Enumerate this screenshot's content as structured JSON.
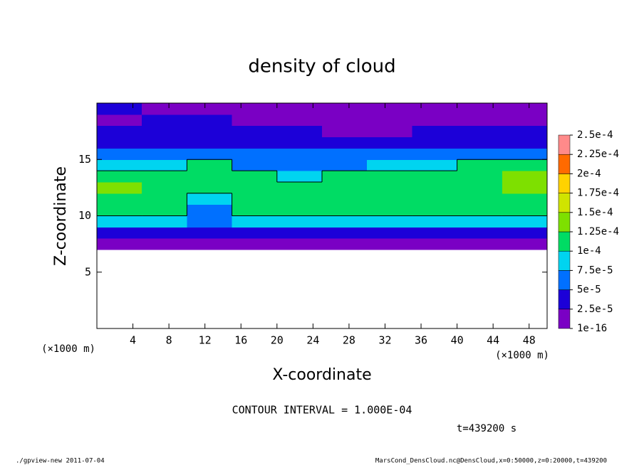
{
  "chart_data": {
    "type": "heatmap",
    "title": "density of cloud",
    "x_label": "X-coordinate",
    "y_label": "Z-coordinate",
    "x_unit": "(×1000 m)",
    "contour_note": "CONTOUR INTERVAL = 1.000E-04",
    "time_label": "t=439200 s",
    "footer_left": "./gpview-new  2011-07-04",
    "footer_right": "MarsCond_DensCloud.nc@DensCloud,x=0:50000,z=0:20000,t=439200",
    "xlim": [
      0,
      50
    ],
    "xticks": [
      4,
      8,
      12,
      16,
      20,
      24,
      28,
      32,
      36,
      40,
      44,
      48
    ],
    "ylim": [
      0,
      20
    ],
    "yticks": [
      5,
      10,
      15
    ],
    "x": [
      2.5,
      7.5,
      12.5,
      17.5,
      22.5,
      27.5,
      32.5,
      37.5,
      42.5,
      47.5
    ],
    "y": [
      0.5,
      1.5,
      2.5,
      3.5,
      4.5,
      5.5,
      6.5,
      7.5,
      8.5,
      9.5,
      10.5,
      11.5,
      12.5,
      13.5,
      14.5,
      15.5,
      16.5,
      17.5,
      18.5,
      19.5
    ],
    "values": [
      [
        null,
        null,
        null,
        null,
        null,
        null,
        null,
        null,
        null,
        null
      ],
      [
        null,
        null,
        null,
        null,
        null,
        null,
        null,
        null,
        null,
        null
      ],
      [
        null,
        null,
        null,
        null,
        null,
        null,
        null,
        null,
        null,
        null
      ],
      [
        null,
        null,
        null,
        null,
        null,
        null,
        null,
        null,
        null,
        null
      ],
      [
        null,
        null,
        null,
        null,
        null,
        null,
        null,
        null,
        null,
        null
      ],
      [
        null,
        null,
        null,
        null,
        null,
        null,
        null,
        null,
        null,
        null
      ],
      [
        null,
        null,
        null,
        null,
        null,
        null,
        null,
        null,
        null,
        null
      ],
      [
        1e-05,
        1e-05,
        1e-05,
        1e-05,
        1e-05,
        1e-05,
        1e-05,
        1e-05,
        1e-05,
        1e-05
      ],
      [
        3e-05,
        4e-05,
        3e-05,
        3e-05,
        3e-05,
        3e-05,
        4e-05,
        3e-05,
        3e-05,
        3e-05
      ],
      [
        8e-05,
        9e-05,
        6e-05,
        8e-05,
        8e-05,
        8e-05,
        8e-05,
        8e-05,
        8e-05,
        8e-05
      ],
      [
        0.0001,
        0.0001,
        7e-05,
        0.0001,
        0.000105,
        0.0001,
        0.0001,
        0.000105,
        0.0001,
        0.0001
      ],
      [
        0.00012,
        0.00011,
        8e-05,
        0.00011,
        0.00012,
        0.00011,
        0.00011,
        0.00012,
        0.00012,
        0.00012
      ],
      [
        0.00013,
        0.00012,
        0.0001,
        0.00012,
        0.00012,
        0.00012,
        0.00012,
        0.00012,
        0.00012,
        0.00013
      ],
      [
        0.00012,
        0.00011,
        0.00011,
        0.0001,
        9e-05,
        0.0001,
        0.00011,
        0.00011,
        0.00012,
        0.00013
      ],
      [
        8e-05,
        8e-05,
        0.0001,
        7e-05,
        6e-05,
        7e-05,
        8e-05,
        9e-05,
        0.0001,
        0.0001
      ],
      [
        6e-05,
        6e-05,
        6e-05,
        5e-05,
        5e-05,
        5e-05,
        6e-05,
        6e-05,
        6e-05,
        7e-05
      ],
      [
        4e-05,
        4e-05,
        4e-05,
        4e-05,
        4e-05,
        3e-05,
        3e-05,
        4e-05,
        4e-05,
        4e-05
      ],
      [
        3e-05,
        3e-05,
        3e-05,
        3e-05,
        3e-05,
        2e-05,
        2e-05,
        3e-05,
        3e-05,
        3e-05
      ],
      [
        2e-05,
        3e-05,
        3e-05,
        2e-05,
        2e-05,
        1e-05,
        1e-05,
        2e-05,
        2e-05,
        2e-05
      ],
      [
        3e-05,
        2e-05,
        2e-05,
        1e-05,
        1e-05,
        1e-05,
        1e-05,
        1e-05,
        2e-05,
        2e-05
      ]
    ],
    "levels": [
      1e-16,
      {
        "value": 2.5e-05,
        "label": "2.5e-5"
      },
      {
        "value": 5e-05,
        "label": "5e-5"
      },
      {
        "value": 7.5e-05,
        "label": "7.5e-5"
      },
      {
        "value": 0.0001,
        "label": "1e-4"
      },
      {
        "value": 0.000125,
        "label": "1.25e-4"
      },
      {
        "value": 0.00015,
        "label": "1.5e-4"
      },
      {
        "value": 0.000175,
        "label": "1.75e-4"
      },
      {
        "value": 0.0002,
        "label": "2e-4"
      },
      {
        "value": 0.000225,
        "label": "2.25e-4"
      },
      {
        "value": 0.00025,
        "label": "2.5e-4"
      }
    ],
    "colors": [
      "#7a00c4",
      "#1c00d8",
      "#0070ff",
      "#00d4f0",
      "#00dc64",
      "#7ee000",
      "#d0e400",
      "#ffd200",
      "#ff6a00",
      "#ff8a8a"
    ],
    "contour_levels": [
      0.0001
    ]
  }
}
